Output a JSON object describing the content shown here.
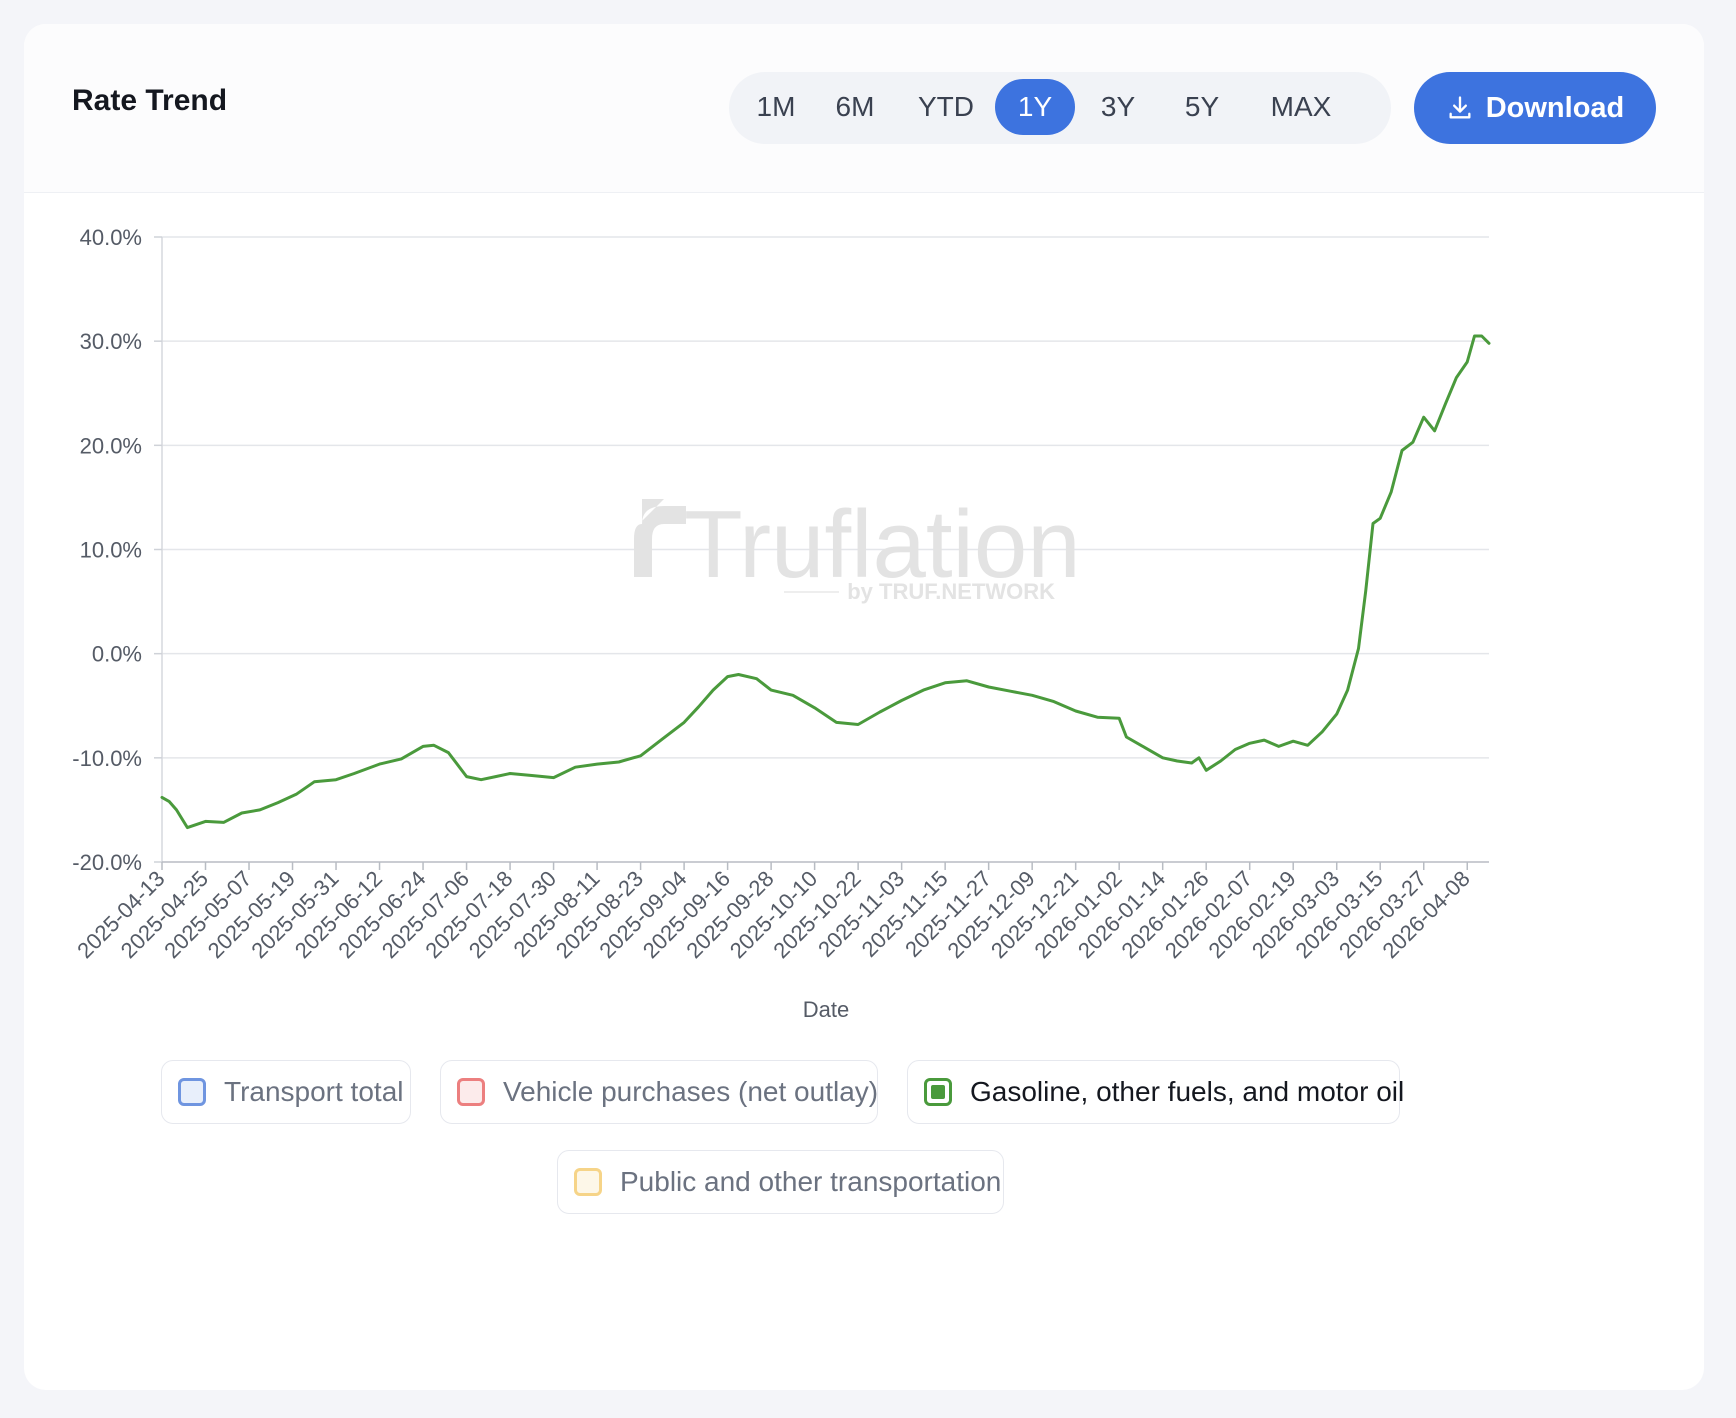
{
  "card": {
    "title": "Rate Trend"
  },
  "ranges": [
    {
      "label": "1M",
      "active": false
    },
    {
      "label": "6M",
      "active": false
    },
    {
      "label": "YTD",
      "active": false
    },
    {
      "label": "1Y",
      "active": true
    },
    {
      "label": "3Y",
      "active": false
    },
    {
      "label": "5Y",
      "active": false
    },
    {
      "label": "MAX",
      "active": false
    }
  ],
  "download": {
    "label": "Download",
    "icon": "download-icon"
  },
  "watermark": {
    "brand": "Truflation",
    "byline": "by TRUF.NETWORK"
  },
  "legend": [
    {
      "label": "Transport total",
      "color": "#6f95e0",
      "fill": "#e8effb",
      "active": false
    },
    {
      "label": "Vehicle purchases (net outlay)",
      "color": "#ec7f7f",
      "fill": "#fcebeb",
      "active": false
    },
    {
      "label": "Gasoline, other fuels, and motor oil",
      "color": "#4a9a3c",
      "fill": "#4a9a3c",
      "active": true
    },
    {
      "label": "Public and other transportation",
      "color": "#f6d488",
      "fill": "#fdf7e8",
      "active": false
    }
  ],
  "chart_data": {
    "type": "line",
    "xlabel": "Date",
    "ylabel": "",
    "ylim": [
      -20,
      40
    ],
    "y_ticks": [
      -20,
      -10,
      0,
      10,
      20,
      30,
      40
    ],
    "y_tick_labels": [
      "-20.0%",
      "-10.0%",
      "0.0%",
      "10.0%",
      "20.0%",
      "30.0%",
      "40.0%"
    ],
    "x_range": [
      "2025-04-13",
      "2026-04-14"
    ],
    "x_tick_labels": [
      "2025-04-13",
      "2025-04-25",
      "2025-05-07",
      "2025-05-19",
      "2025-05-31",
      "2025-06-12",
      "2025-06-24",
      "2025-07-06",
      "2025-07-18",
      "2025-07-30",
      "2025-08-11",
      "2025-08-23",
      "2025-09-04",
      "2025-09-16",
      "2025-09-28",
      "2025-10-10",
      "2025-10-22",
      "2025-11-03",
      "2025-11-15",
      "2025-11-27",
      "2025-12-09",
      "2025-12-21",
      "2026-01-02",
      "2026-01-14",
      "2026-01-26",
      "2026-02-07",
      "2026-02-19",
      "2026-03-03",
      "2026-03-15",
      "2026-03-27",
      "2026-04-08"
    ],
    "grid": true,
    "series": [
      {
        "name": "Gasoline, other fuels, and motor oil",
        "color": "#4a9a3c",
        "x": [
          "2025-04-13",
          "2025-04-15",
          "2025-04-17",
          "2025-04-20",
          "2025-04-25",
          "2025-04-30",
          "2025-05-05",
          "2025-05-10",
          "2025-05-15",
          "2025-05-20",
          "2025-05-25",
          "2025-05-31",
          "2025-06-05",
          "2025-06-12",
          "2025-06-18",
          "2025-06-24",
          "2025-06-27",
          "2025-07-01",
          "2025-07-06",
          "2025-07-10",
          "2025-07-14",
          "2025-07-18",
          "2025-07-24",
          "2025-07-30",
          "2025-08-05",
          "2025-08-11",
          "2025-08-17",
          "2025-08-23",
          "2025-08-29",
          "2025-09-04",
          "2025-09-08",
          "2025-09-12",
          "2025-09-16",
          "2025-09-19",
          "2025-09-24",
          "2025-09-28",
          "2025-10-04",
          "2025-10-10",
          "2025-10-16",
          "2025-10-22",
          "2025-10-28",
          "2025-11-03",
          "2025-11-09",
          "2025-11-15",
          "2025-11-21",
          "2025-11-27",
          "2025-12-03",
          "2025-12-09",
          "2025-12-15",
          "2025-12-21",
          "2025-12-27",
          "2026-01-02",
          "2026-01-04",
          "2026-01-08",
          "2026-01-14",
          "2026-01-18",
          "2026-01-22",
          "2026-01-24",
          "2026-01-26",
          "2026-01-30",
          "2026-02-03",
          "2026-02-07",
          "2026-02-11",
          "2026-02-15",
          "2026-02-19",
          "2026-02-23",
          "2026-02-27",
          "2026-03-03",
          "2026-03-06",
          "2026-03-09",
          "2026-03-11",
          "2026-03-13",
          "2026-03-15",
          "2026-03-18",
          "2026-03-21",
          "2026-03-24",
          "2026-03-27",
          "2026-03-30",
          "2026-04-02",
          "2026-04-05",
          "2026-04-08",
          "2026-04-10",
          "2026-04-12",
          "2026-04-14"
        ],
        "y": [
          -13.8,
          -14.2,
          -15.0,
          -16.7,
          -16.1,
          -16.2,
          -15.3,
          -15.0,
          -14.3,
          -13.5,
          -12.3,
          -12.1,
          -11.5,
          -10.6,
          -10.1,
          -8.9,
          -8.8,
          -9.5,
          -11.8,
          -12.1,
          -11.8,
          -11.5,
          -11.7,
          -11.9,
          -10.9,
          -10.6,
          -10.4,
          -9.8,
          -8.2,
          -6.6,
          -5.1,
          -3.5,
          -2.2,
          -2.0,
          -2.4,
          -3.5,
          -4.0,
          -5.2,
          -6.6,
          -6.8,
          -5.6,
          -4.5,
          -3.5,
          -2.8,
          -2.6,
          -3.2,
          -3.6,
          -4.0,
          -4.6,
          -5.5,
          -6.1,
          -6.2,
          -8.0,
          -8.8,
          -10.0,
          -10.3,
          -10.5,
          -10.0,
          -11.2,
          -10.3,
          -9.2,
          -8.6,
          -8.3,
          -8.9,
          -8.4,
          -8.8,
          -7.5,
          -5.8,
          -3.5,
          0.5,
          6.0,
          12.5,
          13.0,
          15.5,
          19.5,
          20.3,
          22.7,
          21.4,
          24.0,
          26.5,
          28.0,
          30.5,
          30.5,
          29.8
        ]
      }
    ]
  }
}
